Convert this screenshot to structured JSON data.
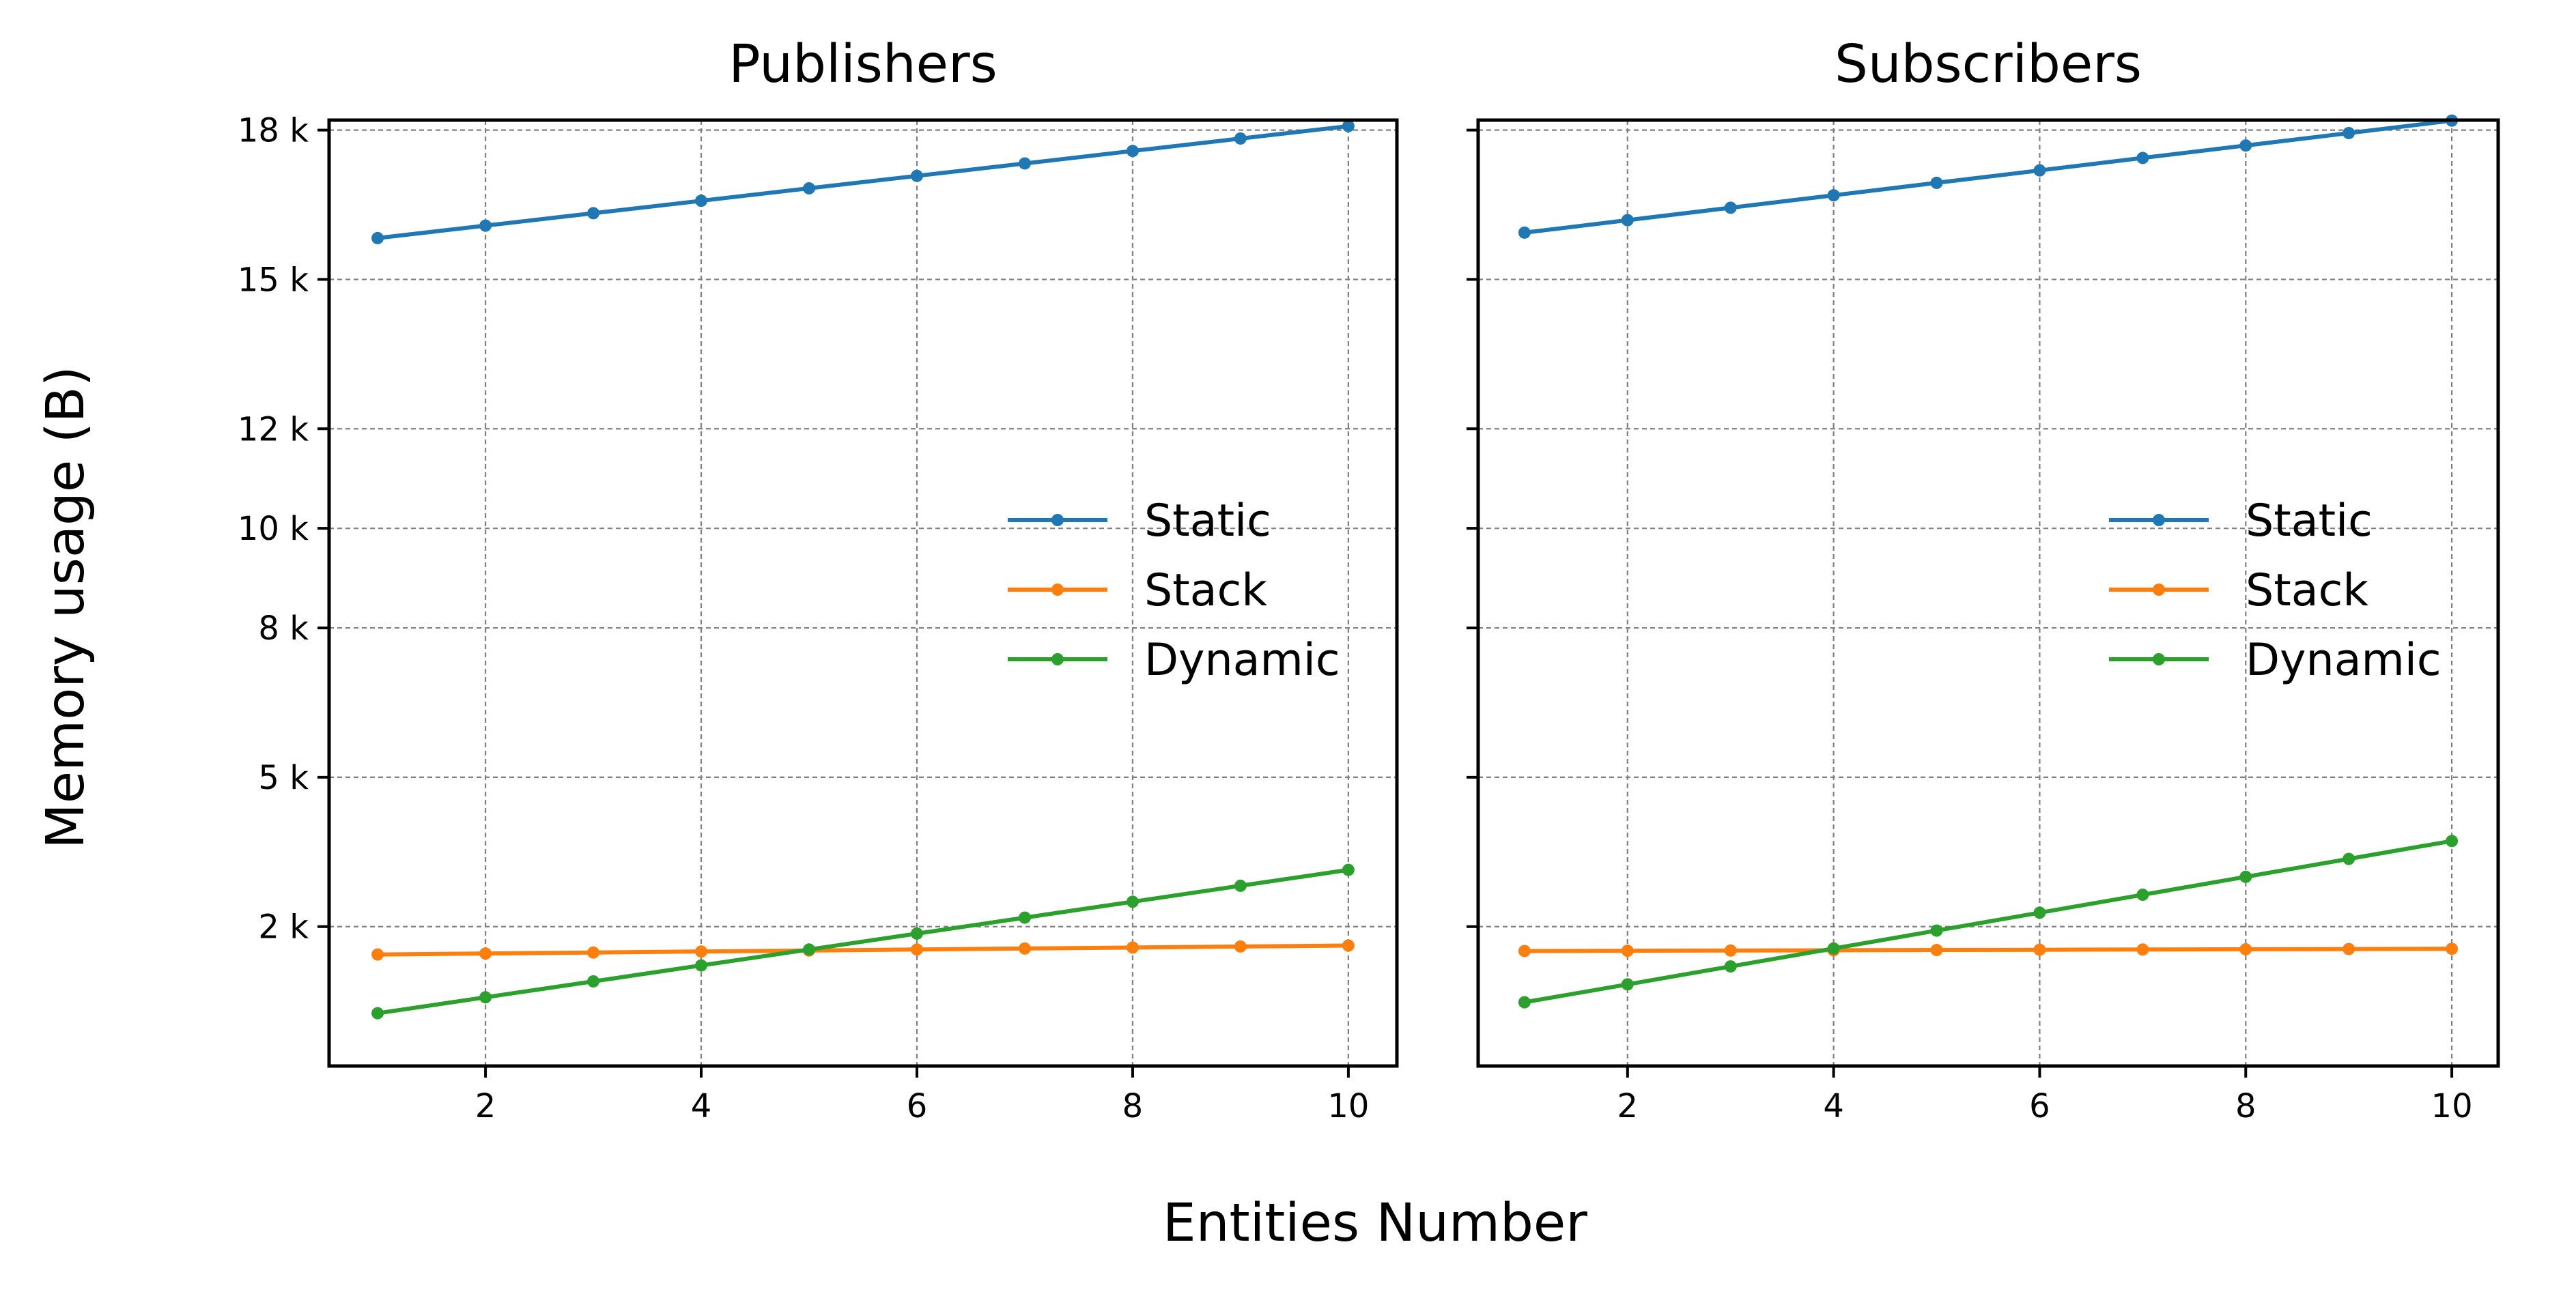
{
  "figure": {
    "xlabel": "Entities Number",
    "ylabel": "Memory usage (B)"
  },
  "chart_data": [
    {
      "type": "line",
      "title": "Publishers",
      "xlabel": "Entities Number",
      "ylabel": "Memory usage (B)",
      "xlim": [
        0.55,
        10.45
      ],
      "ylim": [
        -800,
        18200
      ],
      "xticks": [
        2,
        4,
        6,
        8,
        10
      ],
      "yticks": [
        2000,
        5000,
        8000,
        10000,
        12000,
        15000,
        18000
      ],
      "ytick_labels": [
        "2 k",
        "5 k",
        "8 k",
        "10 k",
        "12 k",
        "15 k",
        "18 k"
      ],
      "grid": true,
      "legend_position": "center-right",
      "x": [
        1,
        2,
        3,
        4,
        5,
        6,
        7,
        8,
        9,
        10
      ],
      "series": [
        {
          "name": "Static",
          "color": "#1f77b4",
          "values": [
            15830,
            16080,
            16330,
            16580,
            16830,
            17080,
            17330,
            17580,
            17830,
            18080
          ]
        },
        {
          "name": "Stack",
          "color": "#ff7f0e",
          "values": [
            1440,
            1460,
            1480,
            1500,
            1520,
            1540,
            1560,
            1580,
            1600,
            1620
          ]
        },
        {
          "name": "Dynamic",
          "color": "#2ca02c",
          "values": [
            260,
            580,
            900,
            1220,
            1540,
            1860,
            2180,
            2500,
            2820,
            3140
          ]
        }
      ]
    },
    {
      "type": "line",
      "title": "Subscribers",
      "xlabel": "Entities Number",
      "ylabel": "Memory usage (B)",
      "xlim": [
        0.55,
        10.45
      ],
      "ylim": [
        -800,
        18200
      ],
      "xticks": [
        2,
        4,
        6,
        8,
        10
      ],
      "yticks": [
        2000,
        5000,
        8000,
        10000,
        12000,
        15000,
        18000
      ],
      "ytick_labels": [
        "",
        "",
        "",
        "",
        "",
        "",
        ""
      ],
      "grid": true,
      "legend_position": "center-right",
      "x": [
        1,
        2,
        3,
        4,
        5,
        6,
        7,
        8,
        9,
        10
      ],
      "series": [
        {
          "name": "Static",
          "color": "#1f77b4",
          "values": [
            15940,
            16190,
            16440,
            16690,
            16940,
            17190,
            17440,
            17690,
            17940,
            18190
          ]
        },
        {
          "name": "Stack",
          "color": "#ff7f0e",
          "values": [
            1510,
            1515,
            1520,
            1525,
            1530,
            1535,
            1540,
            1545,
            1550,
            1555
          ]
        },
        {
          "name": "Dynamic",
          "color": "#2ca02c",
          "values": [
            480,
            840,
            1200,
            1560,
            1920,
            2280,
            2640,
            3000,
            3360,
            3720
          ]
        }
      ]
    }
  ]
}
